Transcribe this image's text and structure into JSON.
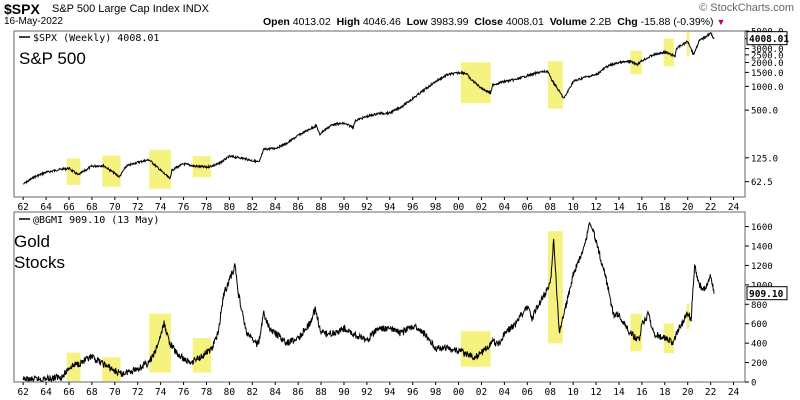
{
  "header": {
    "symbol": "$SPX",
    "name": "S&P 500 Large Cap Index INDX",
    "date": "16-May-2022",
    "open_label": "Open",
    "open": "4013.02",
    "high_label": "High",
    "high": "4046.46",
    "low_label": "Low",
    "low": "3983.99",
    "close_label": "Close",
    "close": "4008.01",
    "volume_label": "Volume",
    "volume": "2.2B",
    "chg_label": "Chg",
    "chg": "-15.88 (-0.39%)",
    "brand": "© StockCharts.com"
  },
  "colors": {
    "highlight": "#f5f06a",
    "line": "#000000",
    "axis": "#000000",
    "panel_border": "#555555"
  },
  "panels": [
    {
      "legend": "$SPX (Weekly) 4008.01",
      "label_lines": [
        "S&P 500"
      ],
      "last_value": "4008.01"
    },
    {
      "legend": "@BGMI 909.10 (13 May)",
      "label_lines": [
        "Gold",
        "Stocks"
      ],
      "last_value": "909.10"
    }
  ],
  "x_tick_labels": [
    "62",
    "64",
    "66",
    "68",
    "70",
    "72",
    "74",
    "76",
    "78",
    "80",
    "82",
    "84",
    "86",
    "88",
    "90",
    "92",
    "94",
    "96",
    "98",
    "00",
    "02",
    "04",
    "06",
    "08",
    "10",
    "12",
    "14",
    "16",
    "18",
    "20",
    "22",
    "24"
  ],
  "chart_data": [
    {
      "type": "line",
      "title": "S&P 500",
      "legend": "$SPX (Weekly) 4008.01",
      "y_scale": "log",
      "ylim": [
        40,
        5000
      ],
      "y_tick_labels": [
        "5000.0",
        "4000.0",
        "3000.0",
        "2500.0",
        "2000.0",
        "1500.0",
        "1000.0",
        "500.0",
        "125.0",
        "62.5"
      ],
      "y_ticks": [
        5000,
        4000,
        3000,
        2500,
        2000,
        1500,
        1000,
        500,
        125,
        62.5
      ],
      "last_value_label": "4008.01",
      "x": [
        1962,
        1963,
        1964,
        1965,
        1966,
        1966.8,
        1968,
        1969,
        1970.4,
        1971,
        1972,
        1973,
        1974.8,
        1975,
        1976,
        1977,
        1978,
        1979,
        1980,
        1981,
        1982.6,
        1983,
        1984,
        1985,
        1986,
        1987.6,
        1987.9,
        1988,
        1989,
        1990,
        1990.8,
        1991,
        1992,
        1993,
        1994,
        1995,
        1996,
        1997,
        1998,
        1999,
        2000.2,
        2000.7,
        2001,
        2002,
        2002.8,
        2003,
        2004,
        2005,
        2006,
        2007,
        2007.8,
        2008,
        2008.5,
        2009.2,
        2010,
        2011,
        2012,
        2013,
        2014,
        2015,
        2015.6,
        2016,
        2017,
        2018,
        2018.9,
        2019,
        2020,
        2020.2,
        2020.5,
        2021,
        2022,
        2022.3
      ],
      "values": [
        58,
        72,
        82,
        88,
        92,
        76,
        98,
        100,
        72,
        98,
        110,
        118,
        68,
        88,
        105,
        98,
        95,
        104,
        130,
        125,
        110,
        160,
        165,
        190,
        240,
        320,
        240,
        260,
        330,
        340,
        305,
        370,
        415,
        455,
        460,
        550,
        700,
        900,
        1150,
        1400,
        1500,
        1450,
        1250,
        950,
        820,
        1050,
        1150,
        1220,
        1360,
        1500,
        1550,
        1300,
        1000,
        700,
        1150,
        1300,
        1400,
        1800,
        2000,
        2060,
        1900,
        2100,
        2500,
        2700,
        2400,
        3000,
        3700,
        3250,
        2500,
        3750,
        4700,
        4000
      ]
    },
    {
      "type": "line",
      "title": "Gold Stocks",
      "legend": "@BGMI 909.10 (13 May)",
      "y_scale": "linear",
      "ylim": [
        0,
        1750
      ],
      "y_tick_labels": [
        "1600",
        "1400",
        "1200",
        "1000",
        "800",
        "600",
        "400",
        "200",
        "0"
      ],
      "y_ticks": [
        1600,
        1400,
        1200,
        1000,
        800,
        600,
        400,
        200,
        0
      ],
      "last_value_label": "909.10",
      "x": [
        1962,
        1964,
        1965.5,
        1966,
        1967,
        1968,
        1968.5,
        1969.5,
        1970.5,
        1971,
        1972,
        1973,
        1973.5,
        1974,
        1974.3,
        1974.8,
        1975.5,
        1976.5,
        1977.5,
        1978,
        1978.5,
        1979,
        1979.5,
        1980.5,
        1980.8,
        1981.5,
        1982.5,
        1983,
        1983.5,
        1984,
        1985,
        1986,
        1987,
        1987.5,
        1988,
        1989,
        1990,
        1991,
        1992,
        1993,
        1994,
        1995,
        1996,
        1997,
        1997.5,
        1998,
        1999,
        2000,
        2000.8,
        2001.5,
        2002,
        2003,
        2003.5,
        2004,
        2005,
        2006,
        2006.4,
        2007,
        2008,
        2008.3,
        2008.8,
        2009.2,
        2010,
        2011,
        2011.5,
        2012,
        2013,
        2013.5,
        2014,
        2015,
        2015.8,
        2016,
        2016.6,
        2017,
        2018,
        2018.8,
        2019,
        2020,
        2020.3,
        2020.6,
        2021,
        2021.5,
        2022,
        2022.3
      ],
      "values": [
        20,
        30,
        60,
        150,
        200,
        250,
        220,
        150,
        80,
        100,
        140,
        200,
        300,
        480,
        600,
        400,
        280,
        200,
        260,
        300,
        350,
        500,
        900,
        1200,
        900,
        500,
        380,
        700,
        550,
        500,
        400,
        450,
        600,
        750,
        500,
        500,
        550,
        480,
        430,
        550,
        550,
        500,
        580,
        500,
        430,
        350,
        350,
        320,
        280,
        260,
        300,
        420,
        380,
        500,
        600,
        780,
        650,
        800,
        1000,
        1450,
        500,
        700,
        1100,
        1400,
        1650,
        1450,
        1000,
        700,
        700,
        500,
        420,
        600,
        700,
        500,
        450,
        400,
        500,
        700,
        650,
        1200,
        1000,
        950,
        1100,
        909
      ]
    }
  ],
  "highlight_periods": [
    [
      1965.8,
      1967.0
    ],
    [
      1968.9,
      1970.5
    ],
    [
      1973.0,
      1974.9
    ],
    [
      1976.8,
      1978.4
    ],
    [
      2000.2,
      2002.8
    ],
    [
      2007.8,
      2009.1
    ],
    [
      2015.0,
      2016.0
    ],
    [
      2017.9,
      2018.8
    ],
    [
      2019.9,
      2020.1
    ]
  ]
}
